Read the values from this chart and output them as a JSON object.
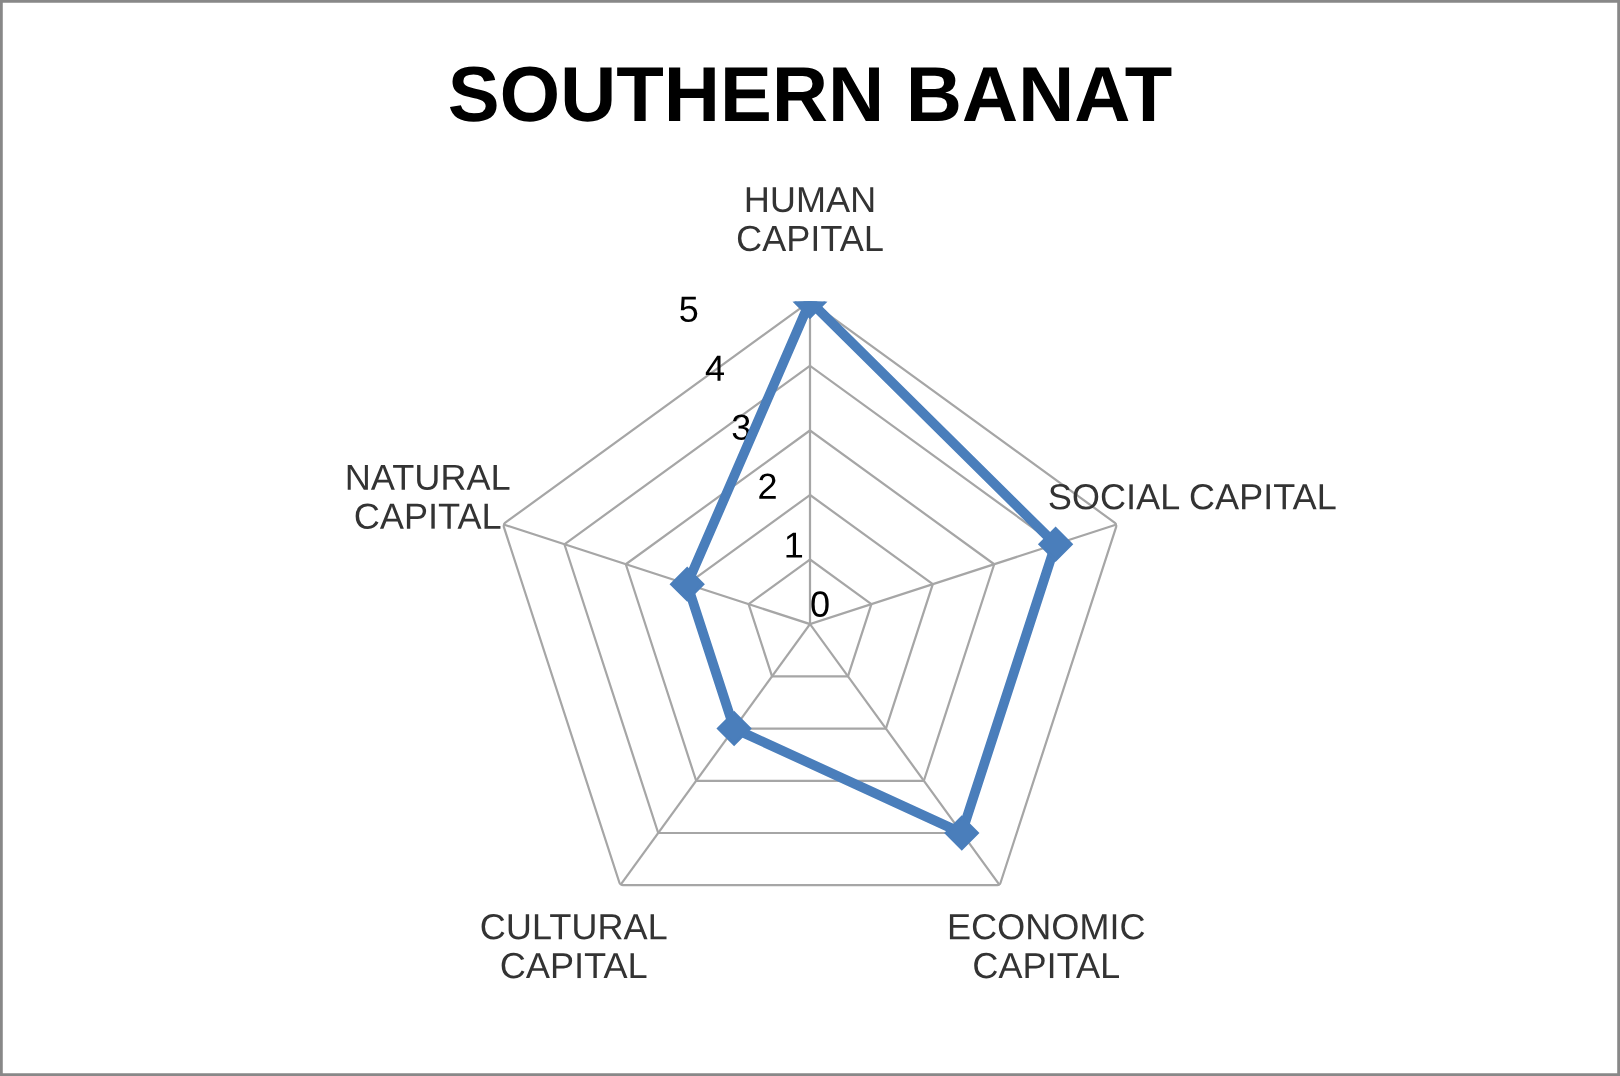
{
  "chart_data": {
    "type": "radar",
    "title": "SOUTHERN BANAT",
    "categories": [
      "HUMAN\nCAPITAL",
      "SOCIAL CAPITAL",
      "ECONOMIC\nCAPITAL",
      "CULTURAL\nCAPITAL",
      "NATURAL\nCAPITAL"
    ],
    "series": [
      {
        "color": "#4a7ebb",
        "values": [
          5,
          4,
          4,
          2,
          2
        ]
      }
    ],
    "ylim": [
      0,
      5
    ],
    "yticks": [
      0,
      1,
      2,
      3,
      4,
      5
    ],
    "grid": true,
    "legend": false,
    "marker": "diamond",
    "line_style": "solid"
  }
}
